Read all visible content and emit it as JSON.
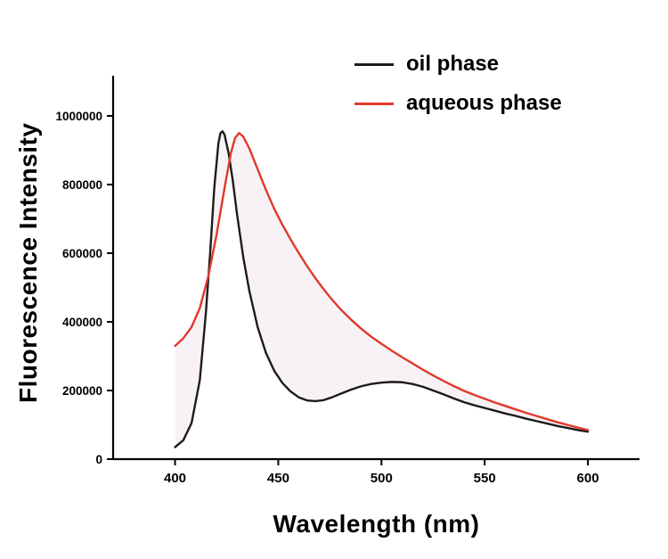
{
  "chart_data": {
    "type": "line",
    "title": "",
    "xlabel": "Wavelength (nm)",
    "ylabel": "Fluorescence Intensity",
    "xlim": [
      370,
      625
    ],
    "ylim": [
      0,
      1000000
    ],
    "xticks": [
      400,
      450,
      500,
      550,
      600
    ],
    "yticks": [
      0,
      200000,
      400000,
      600000,
      800000,
      1000000
    ],
    "grid": false,
    "legend_position": "top-inside",
    "fill_between": {
      "between": [
        "aqueous phase",
        "oil phase"
      ],
      "color": "#f3e7ef",
      "opacity": 0.55
    },
    "series": [
      {
        "name": "oil phase",
        "color": "#1c1c1c",
        "points": [
          [
            400,
            35000
          ],
          [
            404,
            55000
          ],
          [
            408,
            105000
          ],
          [
            412,
            230000
          ],
          [
            415,
            430000
          ],
          [
            417,
            600000
          ],
          [
            419,
            790000
          ],
          [
            421,
            920000
          ],
          [
            422,
            950000
          ],
          [
            423,
            955000
          ],
          [
            424,
            945000
          ],
          [
            426,
            890000
          ],
          [
            428,
            810000
          ],
          [
            430,
            715000
          ],
          [
            433,
            590000
          ],
          [
            436,
            490000
          ],
          [
            440,
            385000
          ],
          [
            444,
            310000
          ],
          [
            448,
            258000
          ],
          [
            452,
            222000
          ],
          [
            456,
            197000
          ],
          [
            460,
            180000
          ],
          [
            464,
            171000
          ],
          [
            468,
            169000
          ],
          [
            472,
            172000
          ],
          [
            476,
            180000
          ],
          [
            480,
            190000
          ],
          [
            485,
            202000
          ],
          [
            490,
            212000
          ],
          [
            495,
            219000
          ],
          [
            500,
            223000
          ],
          [
            505,
            225000
          ],
          [
            510,
            224000
          ],
          [
            515,
            219000
          ],
          [
            520,
            211000
          ],
          [
            525,
            200000
          ],
          [
            530,
            189000
          ],
          [
            535,
            177000
          ],
          [
            540,
            166000
          ],
          [
            545,
            157000
          ],
          [
            550,
            149000
          ],
          [
            555,
            141000
          ],
          [
            560,
            133000
          ],
          [
            565,
            126000
          ],
          [
            570,
            118000
          ],
          [
            575,
            111000
          ],
          [
            580,
            104000
          ],
          [
            585,
            97000
          ],
          [
            590,
            91000
          ],
          [
            595,
            85000
          ],
          [
            600,
            80000
          ]
        ]
      },
      {
        "name": "aqueous phase",
        "color": "#e0392b",
        "points": [
          [
            400,
            330000
          ],
          [
            404,
            352000
          ],
          [
            408,
            385000
          ],
          [
            412,
            440000
          ],
          [
            416,
            530000
          ],
          [
            420,
            650000
          ],
          [
            424,
            790000
          ],
          [
            427,
            890000
          ],
          [
            429,
            935000
          ],
          [
            431,
            950000
          ],
          [
            433,
            940000
          ],
          [
            436,
            905000
          ],
          [
            440,
            845000
          ],
          [
            444,
            785000
          ],
          [
            448,
            730000
          ],
          [
            452,
            683000
          ],
          [
            456,
            640000
          ],
          [
            460,
            600000
          ],
          [
            464,
            562000
          ],
          [
            468,
            527000
          ],
          [
            472,
            495000
          ],
          [
            476,
            465000
          ],
          [
            480,
            438000
          ],
          [
            485,
            408000
          ],
          [
            490,
            381000
          ],
          [
            495,
            357000
          ],
          [
            500,
            336000
          ],
          [
            505,
            316000
          ],
          [
            510,
            297000
          ],
          [
            515,
            279000
          ],
          [
            520,
            261000
          ],
          [
            525,
            244000
          ],
          [
            530,
            228000
          ],
          [
            535,
            213000
          ],
          [
            540,
            199000
          ],
          [
            545,
            187000
          ],
          [
            550,
            176000
          ],
          [
            555,
            165000
          ],
          [
            560,
            155000
          ],
          [
            565,
            145000
          ],
          [
            570,
            135000
          ],
          [
            575,
            126000
          ],
          [
            580,
            117000
          ],
          [
            585,
            108000
          ],
          [
            590,
            100000
          ],
          [
            595,
            92000
          ],
          [
            600,
            85000
          ]
        ]
      }
    ]
  }
}
